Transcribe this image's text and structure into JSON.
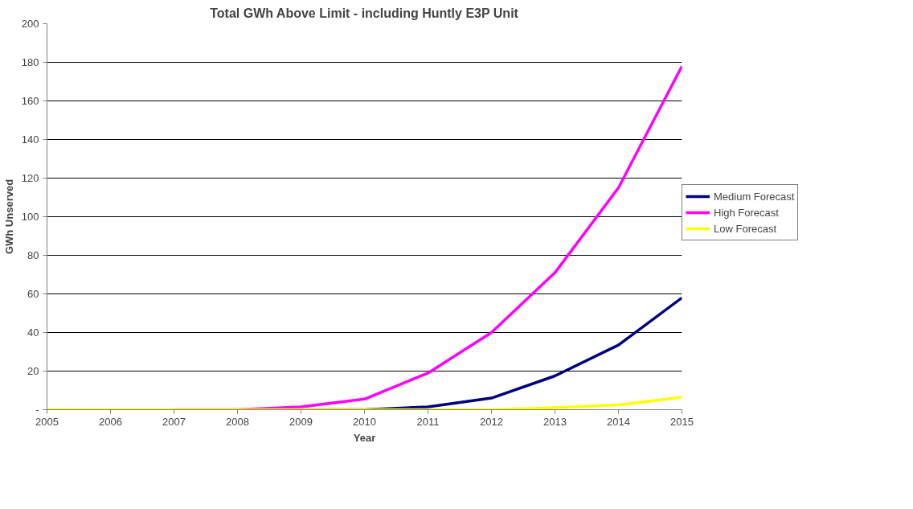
{
  "chart_data": {
    "type": "line",
    "title": "Total GWh Above Limit - including Huntly E3P Unit",
    "xlabel": "Year",
    "ylabel": "GWh Unserved",
    "x": [
      2005,
      2006,
      2007,
      2008,
      2009,
      2010,
      2011,
      2012,
      2013,
      2014,
      2015
    ],
    "series": [
      {
        "name": "Medium Forecast",
        "color": "#000080",
        "values": [
          null,
          null,
          null,
          null,
          0,
          0,
          1.5,
          6,
          17.5,
          33.5,
          58
        ]
      },
      {
        "name": "High Forecast",
        "color": "#ff00ff",
        "values": [
          null,
          null,
          0,
          0,
          1.5,
          5.5,
          19,
          40,
          71,
          115,
          178
        ]
      },
      {
        "name": "Low Forecast",
        "color": "#ffff00",
        "values": [
          0,
          0,
          0,
          0,
          0,
          0,
          0,
          0,
          1,
          2.5,
          6.5
        ]
      }
    ],
    "xlim": [
      2005,
      2015
    ],
    "xticks": [
      2005,
      2006,
      2007,
      2008,
      2009,
      2010,
      2011,
      2012,
      2013,
      2014,
      2015
    ],
    "ylim": [
      0,
      200
    ],
    "yticks": [
      {
        "value": 0,
        "label": "-"
      },
      20,
      40,
      60,
      80,
      100,
      120,
      140,
      160,
      180,
      200
    ],
    "grid": "y",
    "legend": "right",
    "marker": "none",
    "line_style": "solid"
  }
}
